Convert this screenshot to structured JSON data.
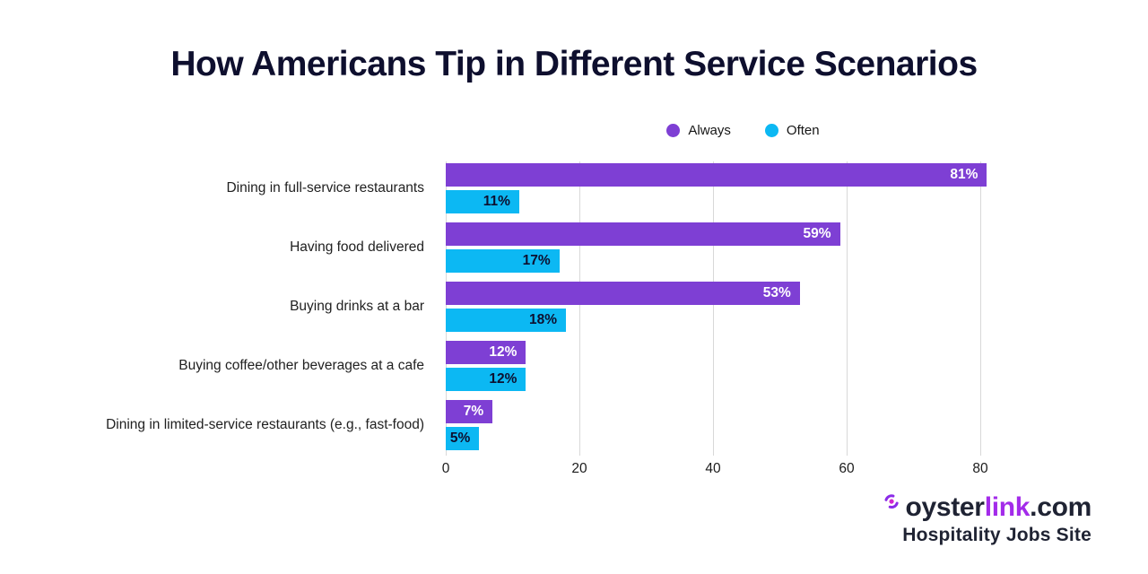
{
  "chart_data": {
    "type": "bar",
    "orientation": "horizontal",
    "title": "How Americans Tip in Different Service Scenarios",
    "categories": [
      "Dining in full-service restaurants",
      "Having food delivered",
      "Buying drinks at a bar",
      "Buying coffee/other beverages at a cafe",
      "Dining in limited-service restaurants (e.g., fast-food)"
    ],
    "series": [
      {
        "name": "Always",
        "color": "#7E3FD4",
        "label_color": "#FFFFFF",
        "values": [
          81,
          59,
          53,
          12,
          7
        ]
      },
      {
        "name": "Often",
        "color": "#0CB8F3",
        "label_color": "#0D1030",
        "values": [
          11,
          17,
          18,
          12,
          5
        ]
      }
    ],
    "value_suffix": "%",
    "x_ticks": [
      0,
      20,
      40,
      60,
      80
    ],
    "xlim": [
      0,
      89
    ],
    "grid": true,
    "gridline_color": "#D8D8D8",
    "legend_position": "top",
    "title_color": "#0E0F2E"
  },
  "branding": {
    "logo_prefix": "oyster",
    "logo_accent": "link",
    "logo_suffix": ".com",
    "tagline": "Hospitality Jobs Site",
    "navy_color": "#1F2333",
    "accent_color": "#A32BEA",
    "icon_arc_color": "#8B2BE8",
    "icon_dot_color": "#D326CE"
  }
}
